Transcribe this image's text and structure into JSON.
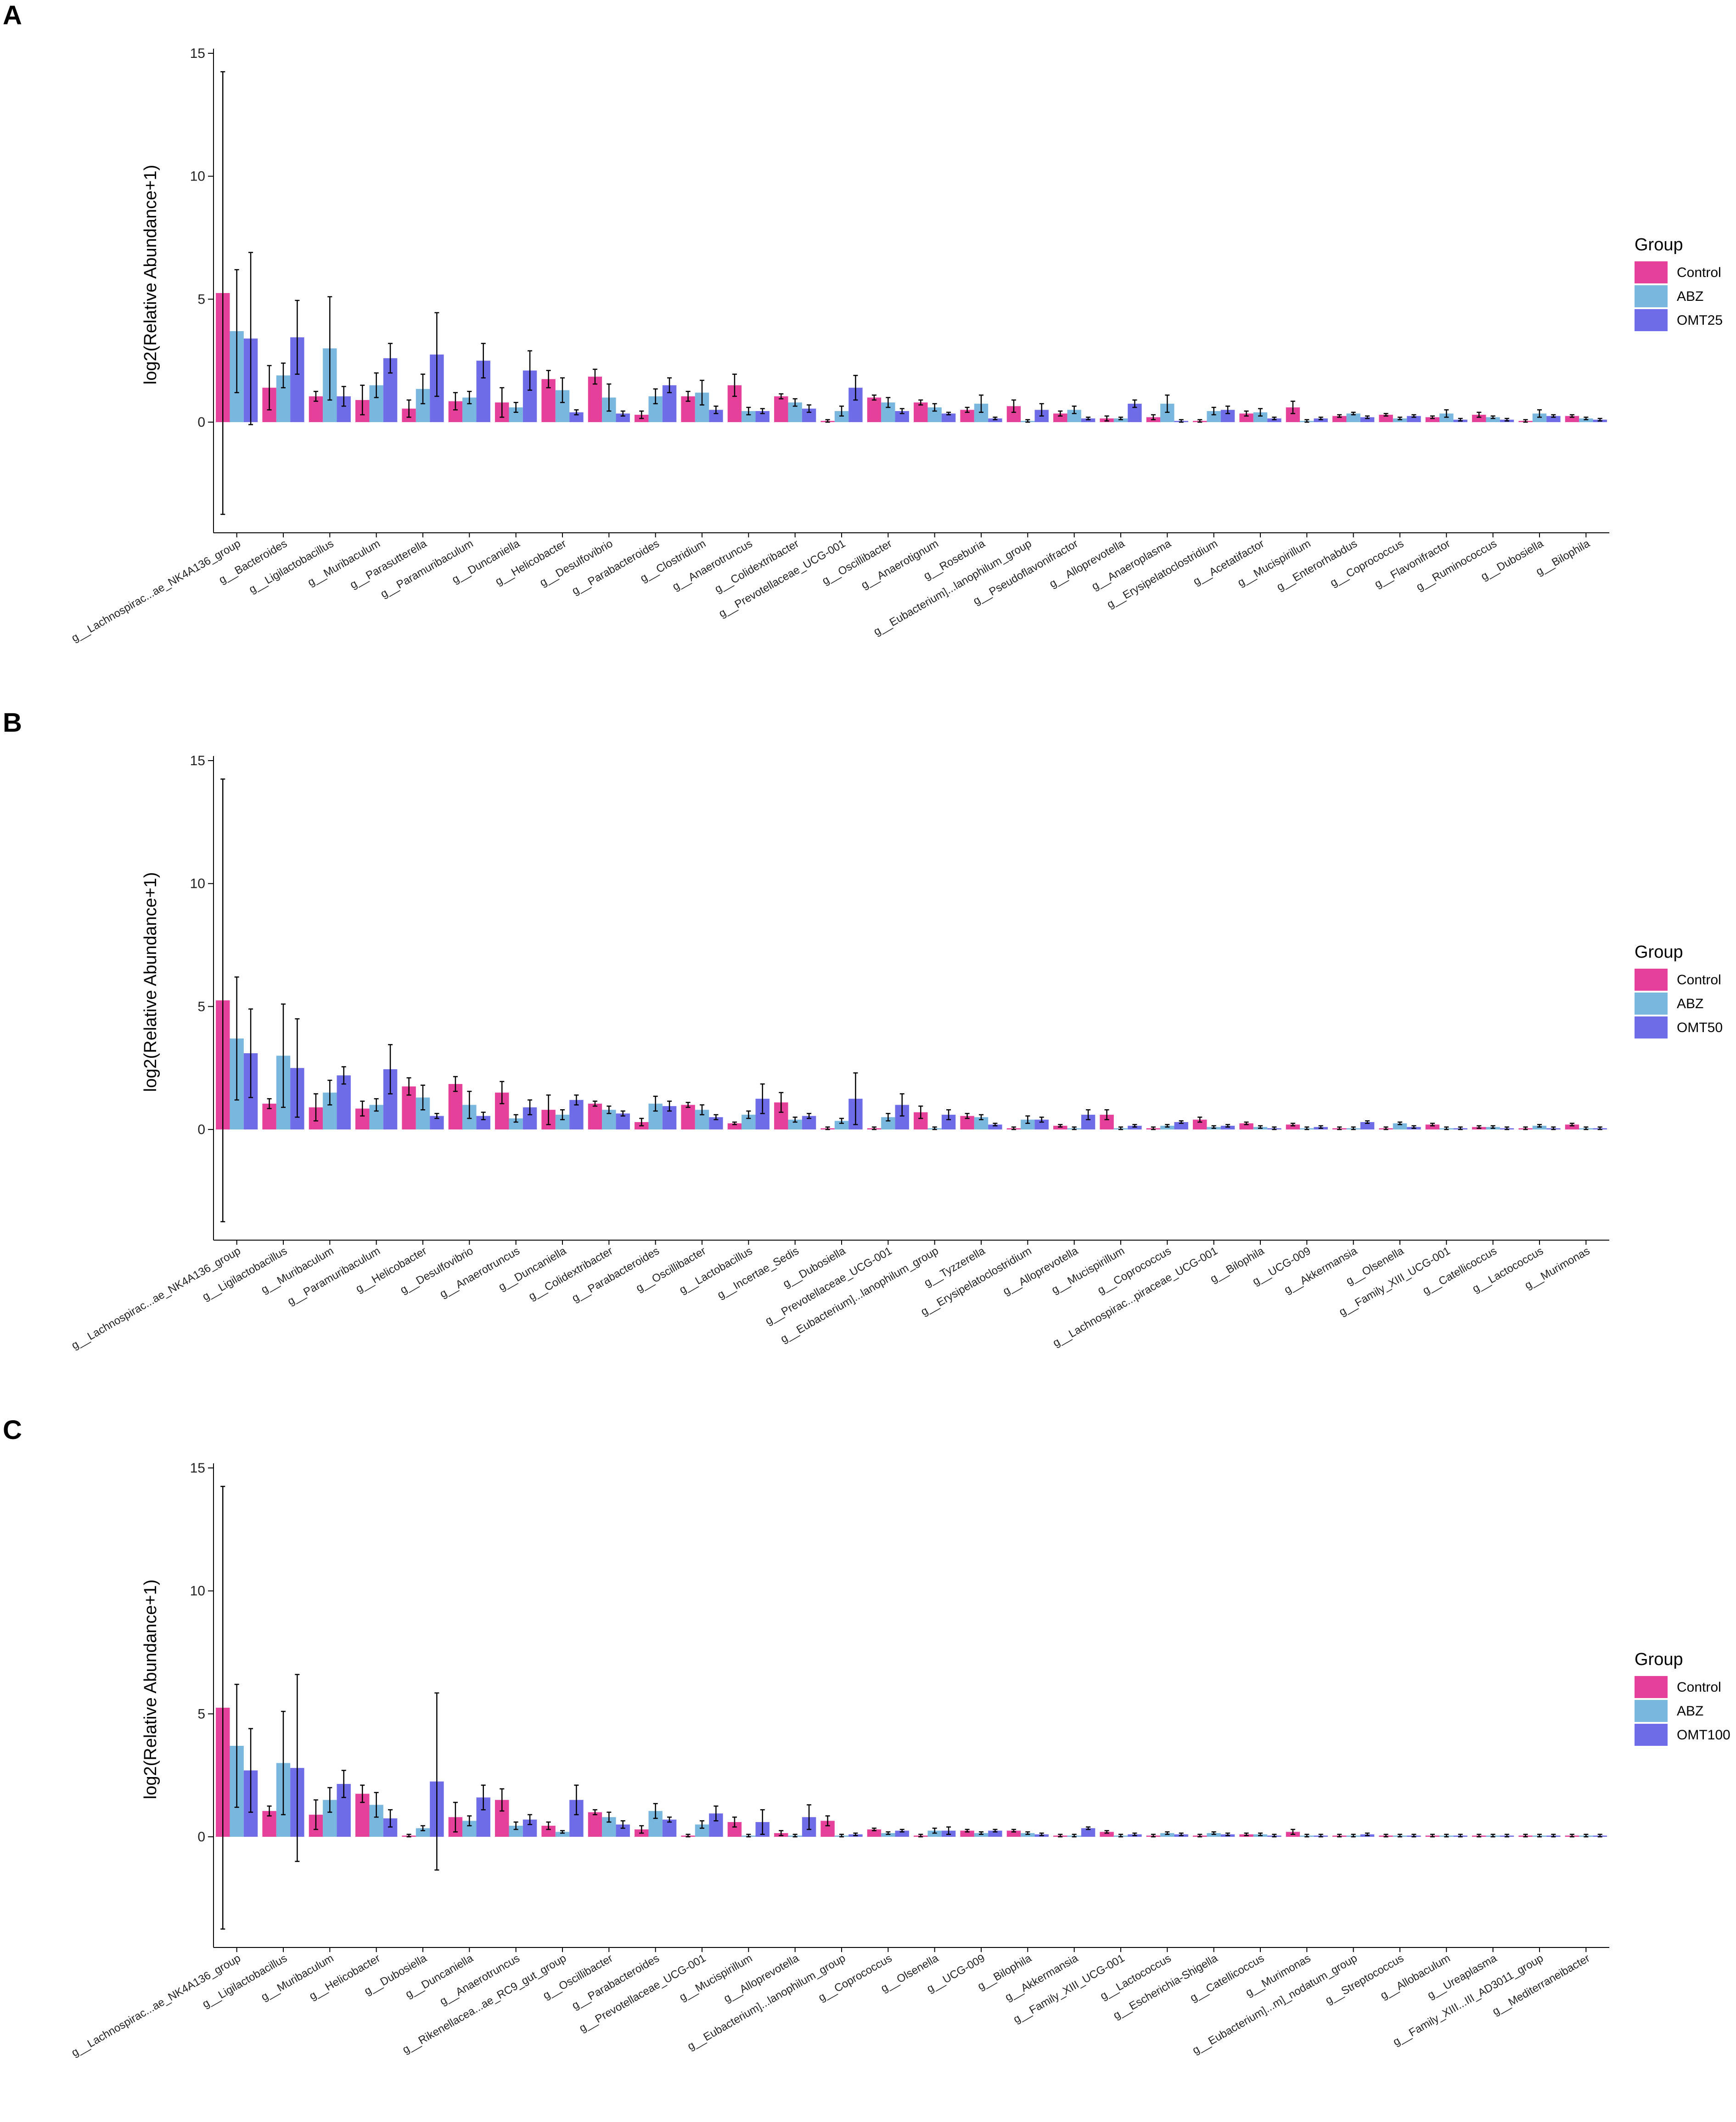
{
  "colors": {
    "Control": "#e5409a",
    "ABZ": "#79b7df",
    "Treatment": "#6e6ce6"
  },
  "chart_data": [
    {
      "type": "bar",
      "panel_label": "A",
      "ylabel": "log2(Relative Abundance+1)",
      "ylim": [
        -4.5,
        15
      ],
      "yticks": [
        0,
        5,
        10,
        15
      ],
      "legend_title": "Group",
      "categories": [
        "g__Lachnospirac...ae_NK4A136_group",
        "g__Bacteroides",
        "g__Ligilactobacillus",
        "g__Muribaculum",
        "g__Parasutterella",
        "g__Paramuribaculum",
        "g__Duncaniella",
        "g__Helicobacter",
        "g__Desulfovibrio",
        "g__Parabacteroides",
        "g__Clostridium",
        "g__Anaerotruncus",
        "g__Colidextribacter",
        "g__Prevotellaceae_UCG-001",
        "g__Oscillibacter",
        "g__Anaerotignum",
        "g__Roseburia",
        "g__Eubacterium]...lanophilum_group",
        "g__Pseudoflavonifractor",
        "g__Alloprevotella",
        "g__Anaeroplasma",
        "g__Erysipelatoclostridium",
        "g__Acetatifactor",
        "g__Mucispirillum",
        "g__Enterorhabdus",
        "g__Coprococcus",
        "g__Flavonifractor",
        "g__Ruminococcus",
        "g__Dubosiella",
        "g__Bilophila"
      ],
      "series": [
        {
          "name": "Control",
          "values": [
            5.25,
            1.4,
            1.05,
            0.9,
            0.55,
            0.85,
            0.8,
            1.75,
            1.85,
            0.3,
            1.05,
            1.5,
            1.05,
            0.05,
            1.0,
            0.8,
            0.5,
            0.65,
            0.35,
            0.15,
            0.2,
            0.05,
            0.35,
            0.6,
            0.25,
            0.3,
            0.2,
            0.3,
            0.05,
            0.25
          ],
          "errors": [
            9.0,
            0.9,
            0.2,
            0.6,
            0.35,
            0.35,
            0.6,
            0.35,
            0.3,
            0.15,
            0.2,
            0.45,
            0.1,
            0.05,
            0.1,
            0.1,
            0.1,
            0.25,
            0.1,
            0.1,
            0.1,
            0.05,
            0.1,
            0.25,
            0.05,
            0.05,
            0.05,
            0.1,
            0.05,
            0.05
          ]
        },
        {
          "name": "ABZ",
          "values": [
            3.7,
            1.9,
            3.0,
            1.5,
            1.35,
            1.0,
            0.6,
            1.3,
            1.0,
            1.05,
            1.2,
            0.45,
            0.8,
            0.45,
            0.8,
            0.6,
            0.75,
            0.05,
            0.5,
            0.15,
            0.75,
            0.45,
            0.4,
            0.05,
            0.35,
            0.15,
            0.35,
            0.2,
            0.35,
            0.15
          ],
          "errors": [
            2.5,
            0.5,
            2.1,
            0.5,
            0.6,
            0.25,
            0.2,
            0.5,
            0.55,
            0.3,
            0.5,
            0.15,
            0.15,
            0.2,
            0.2,
            0.15,
            0.35,
            0.05,
            0.15,
            0.05,
            0.35,
            0.15,
            0.15,
            0.05,
            0.05,
            0.05,
            0.15,
            0.05,
            0.15,
            0.05
          ]
        },
        {
          "name": "OMT25",
          "values": [
            3.4,
            3.45,
            1.05,
            2.6,
            2.75,
            2.5,
            2.1,
            0.4,
            0.35,
            1.5,
            0.5,
            0.45,
            0.55,
            1.4,
            0.45,
            0.35,
            0.15,
            0.5,
            0.15,
            0.75,
            0.05,
            0.5,
            0.15,
            0.15,
            0.2,
            0.25,
            0.1,
            0.1,
            0.25,
            0.1
          ],
          "errors": [
            3.5,
            1.5,
            0.4,
            0.6,
            1.7,
            0.7,
            0.8,
            0.1,
            0.1,
            0.3,
            0.15,
            0.1,
            0.15,
            0.5,
            0.1,
            0.05,
            0.05,
            0.25,
            0.05,
            0.15,
            0.05,
            0.15,
            0.05,
            0.05,
            0.05,
            0.05,
            0.05,
            0.05,
            0.05,
            0.05
          ]
        }
      ]
    },
    {
      "type": "bar",
      "panel_label": "B",
      "ylabel": "log2(Relative Abundance+1)",
      "ylim": [
        -4.5,
        15
      ],
      "yticks": [
        0,
        5,
        10,
        15
      ],
      "legend_title": "Group",
      "categories": [
        "g__Lachnospirac...ae_NK4A136_group",
        "g__Ligilactobacillus",
        "g__Muribaculum",
        "g__Paramuribaculum",
        "g__Helicobacter",
        "g__Desulfovibrio",
        "g__Anaerotruncus",
        "g__Duncaniella",
        "g__Colidextribacter",
        "g__Parabacteroides",
        "g__Oscillibacter",
        "g__Lactobacillus",
        "g__Incertae_Sedis",
        "g__Dubosiella",
        "g__Prevotellaceae_UCG-001",
        "g__Eubacterium]...lanophilum_group",
        "g__Tyzzerella",
        "g__Erysipelatoclostridium",
        "g__Alloprevotella",
        "g__Mucispirillum",
        "g__Coprococcus",
        "g__Lachnospirac...piraceae_UCG-001",
        "g__Bilophila",
        "g__UCG-009",
        "g__Akkermansia",
        "g__Olsenella",
        "g__Family_XIII_UCG-001",
        "g__Catellicoccus",
        "g__Lactococcus",
        "g__Murimonas"
      ],
      "series": [
        {
          "name": "Control",
          "values": [
            5.25,
            1.05,
            0.9,
            0.85,
            1.75,
            1.85,
            1.5,
            0.8,
            1.05,
            0.3,
            1.0,
            0.25,
            1.1,
            0.05,
            0.05,
            0.7,
            0.55,
            0.05,
            0.15,
            0.6,
            0.05,
            0.4,
            0.25,
            0.2,
            0.05,
            0.05,
            0.2,
            0.1,
            0.05,
            0.2
          ],
          "errors": [
            9.0,
            0.2,
            0.55,
            0.3,
            0.35,
            0.3,
            0.45,
            0.6,
            0.1,
            0.15,
            0.1,
            0.05,
            0.4,
            0.05,
            0.05,
            0.25,
            0.1,
            0.05,
            0.05,
            0.2,
            0.05,
            0.1,
            0.05,
            0.05,
            0.05,
            0.05,
            0.05,
            0.05,
            0.05,
            0.05
          ]
        },
        {
          "name": "ABZ",
          "values": [
            3.7,
            3.0,
            1.5,
            1.0,
            1.3,
            1.0,
            0.45,
            0.6,
            0.8,
            1.05,
            0.8,
            0.6,
            0.4,
            0.35,
            0.5,
            0.05,
            0.5,
            0.4,
            0.05,
            0.05,
            0.15,
            0.1,
            0.1,
            0.05,
            0.05,
            0.25,
            0.05,
            0.1,
            0.15,
            0.05
          ],
          "errors": [
            2.5,
            2.1,
            0.5,
            0.25,
            0.5,
            0.55,
            0.15,
            0.2,
            0.15,
            0.3,
            0.2,
            0.15,
            0.1,
            0.1,
            0.15,
            0.05,
            0.1,
            0.15,
            0.05,
            0.05,
            0.05,
            0.05,
            0.05,
            0.05,
            0.05,
            0.05,
            0.05,
            0.05,
            0.05,
            0.05
          ]
        },
        {
          "name": "OMT50",
          "values": [
            3.1,
            2.5,
            2.2,
            2.45,
            0.55,
            0.55,
            0.9,
            1.2,
            0.65,
            0.95,
            0.5,
            1.25,
            0.55,
            1.25,
            1.0,
            0.6,
            0.2,
            0.4,
            0.6,
            0.15,
            0.3,
            0.15,
            0.05,
            0.1,
            0.3,
            0.1,
            0.05,
            0.05,
            0.05,
            0.05
          ],
          "errors": [
            1.8,
            2.0,
            0.35,
            1.0,
            0.1,
            0.15,
            0.3,
            0.2,
            0.1,
            0.2,
            0.1,
            0.6,
            0.1,
            1.05,
            0.45,
            0.2,
            0.05,
            0.1,
            0.2,
            0.05,
            0.05,
            0.05,
            0.05,
            0.05,
            0.05,
            0.05,
            0.05,
            0.05,
            0.05,
            0.05
          ]
        }
      ]
    },
    {
      "type": "bar",
      "panel_label": "C",
      "ylabel": "log2(Relative Abundance+1)",
      "ylim": [
        -4.5,
        15
      ],
      "yticks": [
        0,
        5,
        10,
        15
      ],
      "legend_title": "Group",
      "categories": [
        "g__Lachnospirac...ae_NK4A136_group",
        "g__Ligilactobacillus",
        "g__Muribaculum",
        "g__Helicobacter",
        "g__Dubosiella",
        "g__Duncaniella",
        "g__Anaerotruncus",
        "g__Rikenellacea...ae_RC9_gut_group",
        "g__Oscillibacter",
        "g__Parabacteroides",
        "g__Prevotellaceae_UCG-001",
        "g__Mucispirillum",
        "g__Alloprevotella",
        "g__Eubacterium]...lanophilum_group",
        "g__Coprococcus",
        "g__Olsenella",
        "g__UCG-009",
        "g__Bilophila",
        "g__Akkermansia",
        "g__Family_XIII_UCG-001",
        "g__Lactococcus",
        "g__Escherichia-Shigella",
        "g__Catellicoccus",
        "g__Murimonas",
        "g__Eubacterium]...m]_nodatum_group",
        "g__Streptococcus",
        "g__Allobaculum",
        "g__Ureaplasma",
        "g__Family_XIII...III_AD3011_group",
        "g__Mediterraneibacter"
      ],
      "series": [
        {
          "name": "Control",
          "values": [
            5.25,
            1.05,
            0.9,
            1.75,
            0.05,
            0.8,
            1.5,
            0.45,
            1.0,
            0.3,
            0.05,
            0.6,
            0.15,
            0.65,
            0.3,
            0.05,
            0.25,
            0.25,
            0.05,
            0.2,
            0.05,
            0.05,
            0.1,
            0.2,
            0.05,
            0.05,
            0.05,
            0.05,
            0.05,
            0.05
          ],
          "errors": [
            9.0,
            0.2,
            0.6,
            0.35,
            0.05,
            0.6,
            0.45,
            0.15,
            0.1,
            0.15,
            0.05,
            0.2,
            0.1,
            0.2,
            0.05,
            0.05,
            0.05,
            0.05,
            0.05,
            0.05,
            0.05,
            0.05,
            0.05,
            0.1,
            0.05,
            0.05,
            0.05,
            0.05,
            0.05,
            0.05
          ]
        },
        {
          "name": "ABZ",
          "values": [
            3.7,
            3.0,
            1.5,
            1.3,
            0.35,
            0.65,
            0.45,
            0.2,
            0.8,
            1.05,
            0.5,
            0.05,
            0.05,
            0.05,
            0.15,
            0.25,
            0.15,
            0.15,
            0.05,
            0.05,
            0.15,
            0.15,
            0.1,
            0.05,
            0.05,
            0.05,
            0.05,
            0.05,
            0.05,
            0.05
          ],
          "errors": [
            2.5,
            2.1,
            0.5,
            0.5,
            0.1,
            0.2,
            0.15,
            0.05,
            0.2,
            0.3,
            0.15,
            0.05,
            0.05,
            0.05,
            0.05,
            0.1,
            0.05,
            0.05,
            0.05,
            0.05,
            0.05,
            0.05,
            0.05,
            0.05,
            0.05,
            0.05,
            0.05,
            0.05,
            0.05,
            0.05
          ]
        },
        {
          "name": "OMT100",
          "values": [
            2.7,
            2.8,
            2.15,
            0.75,
            2.25,
            1.6,
            0.7,
            1.5,
            0.5,
            0.7,
            0.95,
            0.6,
            0.8,
            0.1,
            0.25,
            0.25,
            0.25,
            0.1,
            0.35,
            0.1,
            0.1,
            0.1,
            0.05,
            0.05,
            0.1,
            0.05,
            0.05,
            0.05,
            0.05,
            0.05
          ],
          "errors": [
            1.7,
            3.8,
            0.55,
            0.35,
            3.6,
            0.5,
            0.2,
            0.6,
            0.15,
            0.1,
            0.3,
            0.5,
            0.5,
            0.05,
            0.05,
            0.15,
            0.05,
            0.05,
            0.05,
            0.05,
            0.05,
            0.05,
            0.05,
            0.05,
            0.05,
            0.05,
            0.05,
            0.05,
            0.05,
            0.05
          ]
        }
      ]
    }
  ]
}
